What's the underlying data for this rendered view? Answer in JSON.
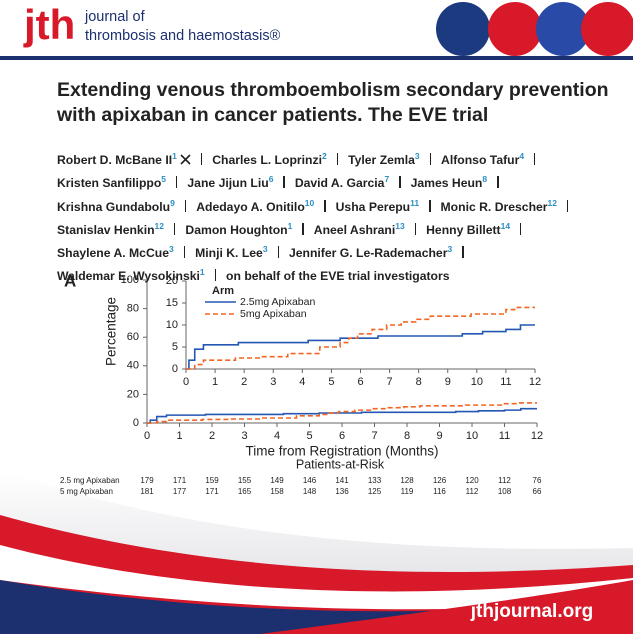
{
  "header": {
    "logo": "jth",
    "journal_lines": [
      "journal of",
      "thrombosis and haemostasis®"
    ]
  },
  "title_lines": [
    "Extending venous thromboembolism secondary prevention",
    "with apixaban in cancer patients. The EVE trial"
  ],
  "author_lines": [
    [
      {
        "name": "Robert D. McBane II",
        "aff": "1"
      },
      {
        "name": "Charles L. Loprinzi",
        "aff": "2"
      },
      {
        "name": "Tyler Zemla",
        "aff": "3"
      },
      {
        "name": "Alfonso Tafur",
        "aff": "4"
      }
    ],
    [
      {
        "name": "Kristen Sanfilippo",
        "aff": "5"
      },
      {
        "name": "Jane Jijun Liu",
        "aff": "6"
      },
      {
        "name": "David A. Garcia",
        "aff": "7"
      },
      {
        "name": "James Heun",
        "aff": "8"
      }
    ],
    [
      {
        "name": "Krishna Gundabolu",
        "aff": "9"
      },
      {
        "name": "Adedayo A. Onitilo",
        "aff": "10"
      },
      {
        "name": "Usha Perepu",
        "aff": "11"
      },
      {
        "name": "Monic R. Drescher",
        "aff": "12"
      }
    ],
    [
      {
        "name": "Stanislav Henkin",
        "aff": "12"
      },
      {
        "name": "Damon Houghton",
        "aff": "1"
      },
      {
        "name": "Aneel Ashrani",
        "aff": "13"
      },
      {
        "name": "Henny Billett",
        "aff": "14"
      }
    ],
    [
      {
        "name": "Shaylene A. McCue",
        "aff": "3"
      },
      {
        "name": "Minji K. Lee",
        "aff": "3"
      },
      {
        "name": "Jennifer G. Le-Rademacher",
        "aff": "3"
      }
    ],
    [
      {
        "name": "Waldemar E. Wysokinski",
        "aff": "1"
      }
    ]
  ],
  "on_behalf": "on behalf of the EVE trial investigators",
  "panel_label": "A",
  "chart_data": [
    {
      "type": "line",
      "x_label": "Time from Registration (Months)",
      "y_label": "Percentage",
      "xlim": [
        0,
        12
      ],
      "ylim": [
        0,
        100
      ],
      "xticks": [
        0,
        1,
        2,
        3,
        4,
        5,
        6,
        7,
        8,
        9,
        10,
        11,
        12
      ],
      "yticks": [
        0,
        20,
        40,
        60,
        80,
        100
      ],
      "series": [
        {
          "name": "2.5mg Apixaban",
          "color": "#2456b4",
          "x": [
            0,
            0.1,
            0.3,
            0.6,
            1.8,
            4.2,
            5.3,
            6.6,
            9.5,
            10.2,
            11.0,
            11.5,
            12
          ],
          "values": [
            0,
            2,
            4.5,
            5.5,
            6,
            6.5,
            7,
            7.5,
            8,
            8.5,
            9,
            10,
            10
          ]
        },
        {
          "name": "5mg Apixaban",
          "color": "#f26522",
          "x": [
            0,
            0.3,
            0.6,
            1.7,
            2.6,
            3.5,
            4.6,
            5.3,
            5.6,
            5.9,
            6.4,
            6.9,
            7.4,
            7.9,
            8.4,
            9.8,
            11.0,
            11.4,
            12
          ],
          "values": [
            0,
            1,
            2,
            2.5,
            2.8,
            3.5,
            5,
            6,
            7,
            8,
            9,
            10,
            10.7,
            11.3,
            12,
            12.5,
            13.5,
            14,
            14
          ]
        }
      ]
    },
    {
      "type": "line",
      "legend_title": "Arm",
      "xlim": [
        0,
        12
      ],
      "ylim": [
        0,
        20
      ],
      "xticks": [
        0,
        1,
        2,
        3,
        4,
        5,
        6,
        7,
        8,
        9,
        10,
        11,
        12
      ],
      "yticks": [
        0,
        5,
        10,
        15,
        20
      ],
      "series": [
        {
          "name": "2.5mg Apixaban",
          "color": "#2456b4",
          "x": [
            0,
            0.1,
            0.3,
            0.6,
            1.8,
            4.2,
            5.3,
            6.6,
            9.5,
            10.2,
            11.0,
            11.5,
            12
          ],
          "values": [
            0,
            2,
            4.5,
            5.5,
            6,
            6.5,
            7,
            7.5,
            8,
            8.5,
            9,
            10,
            10
          ]
        },
        {
          "name": "5mg Apixaban",
          "color": "#f26522",
          "x": [
            0,
            0.3,
            0.6,
            1.7,
            2.6,
            3.5,
            4.6,
            5.3,
            5.6,
            5.9,
            6.4,
            6.9,
            7.4,
            7.9,
            8.4,
            9.8,
            11.0,
            11.4,
            12
          ],
          "values": [
            0,
            1,
            2,
            2.5,
            2.8,
            3.5,
            5,
            6,
            7,
            8,
            9,
            10,
            10.7,
            11.3,
            12,
            12.5,
            13.5,
            14,
            14
          ]
        }
      ]
    }
  ],
  "risk_table": {
    "title": "Patients-at-Risk",
    "rows": [
      {
        "label": "2.5 mg Apixaban",
        "values": [
          179,
          171,
          159,
          155,
          149,
          146,
          141,
          133,
          128,
          126,
          120,
          112,
          76
        ]
      },
      {
        "label": "5 mg Apixaban",
        "values": [
          181,
          177,
          171,
          165,
          158,
          148,
          136,
          125,
          119,
          116,
          112,
          108,
          66
        ]
      }
    ]
  },
  "footer": "jthjournal.org"
}
